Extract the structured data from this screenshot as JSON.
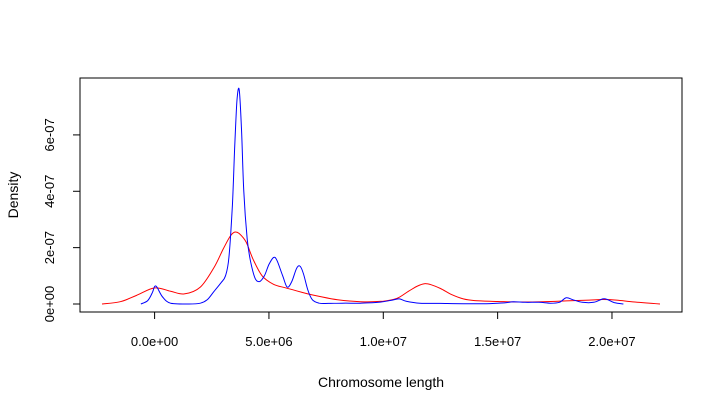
{
  "chart_data": {
    "type": "line",
    "title": "",
    "xlabel": "Chromosome length",
    "ylabel": "Density",
    "xlim": [
      -2300000,
      22100000
    ],
    "ylim": [
      0,
      7.7e-07
    ],
    "x_ticks": [
      {
        "value": 0,
        "label": "0.0e+00"
      },
      {
        "value": 5000000,
        "label": "5.0e+06"
      },
      {
        "value": 10000000,
        "label": "1.0e+07"
      },
      {
        "value": 15000000,
        "label": "1.5e+07"
      },
      {
        "value": 20000000,
        "label": "2.0e+07"
      }
    ],
    "y_ticks": [
      {
        "value": 0,
        "label": "0e+00"
      },
      {
        "value": 2e-07,
        "label": "2e-07"
      },
      {
        "value": 4e-07,
        "label": "4e-07"
      },
      {
        "value": 6e-07,
        "label": "6e-07"
      }
    ],
    "grid": false,
    "series": [
      {
        "color": "#ff0000",
        "x": [
          -2300000,
          -1500000,
          -800000,
          0,
          700000,
          1300000,
          2000000,
          2600000,
          3000000,
          3300000,
          3500000,
          3700000,
          4000000,
          4300000,
          4700000,
          5200000,
          5700000,
          6200000,
          6700000,
          7200000,
          8000000,
          9000000,
          10000000,
          10600000,
          11100000,
          11500000,
          11800000,
          12100000,
          12500000,
          13000000,
          13500000,
          14000000,
          15000000,
          16000000,
          17000000,
          18000000,
          19000000,
          19600000,
          20200000,
          21000000,
          22100000
        ],
        "y": [
          0,
          8e-09,
          3e-08,
          5.7e-08,
          4.5e-08,
          3.6e-08,
          6e-08,
          1.3e-07,
          1.95e-07,
          2.4e-07,
          2.55e-07,
          2.5e-07,
          2.2e-07,
          1.6e-07,
          1e-07,
          7e-08,
          5.8e-08,
          4.7e-08,
          3.6e-08,
          2.7e-08,
          1.5e-08,
          8e-09,
          1e-08,
          2e-08,
          4.5e-08,
          6.4e-08,
          7.2e-08,
          6.8e-08,
          5.5e-08,
          3.3e-08,
          1.8e-08,
          1.2e-08,
          9e-09,
          7e-09,
          8e-09,
          1.1e-08,
          1.4e-08,
          1.6e-08,
          1.4e-08,
          7e-09,
          0
        ]
      },
      {
        "color": "#0000ff",
        "x": [
          -600000,
          -300000,
          -100000,
          0,
          100000,
          350000,
          700000,
          1500000,
          2000000,
          2300000,
          2600000,
          2900000,
          3100000,
          3250000,
          3400000,
          3500000,
          3600000,
          3700000,
          3800000,
          3900000,
          4050000,
          4200000,
          4400000,
          4600000,
          4800000,
          5000000,
          5200000,
          5350000,
          5600000,
          5800000,
          6000000,
          6200000,
          6350000,
          6500000,
          6700000,
          6900000,
          7200000,
          7600000,
          8200000,
          9000000,
          9800000,
          10400000,
          10700000,
          11000000,
          11600000,
          12500000,
          13500000,
          14500000,
          15300000,
          15700000,
          16200000,
          16800000,
          17300000,
          17700000,
          18000000,
          18300000,
          18700000,
          19200000,
          19600000,
          19800000,
          20100000,
          20500000
        ],
        "y": [
          0,
          1.2e-08,
          4e-08,
          6.2e-08,
          6e-08,
          2.5e-08,
          3e-09,
          0,
          3e-09,
          1.5e-08,
          4.5e-08,
          7.5e-08,
          1e-07,
          1.65e-07,
          3.5e-07,
          5.5e-07,
          7.2e-07,
          7.6e-07,
          6.2e-07,
          4e-07,
          2.3e-07,
          1.5e-07,
          9e-08,
          8e-08,
          1e-07,
          1.4e-07,
          1.65e-07,
          1.55e-07,
          1e-07,
          6e-08,
          8e-08,
          1.25e-07,
          1.35e-07,
          1.1e-07,
          5e-08,
          1.5e-08,
          3e-09,
          2e-09,
          3e-09,
          3e-09,
          6e-09,
          1.4e-08,
          1.8e-08,
          1e-08,
          3e-09,
          2e-09,
          1e-09,
          1e-09,
          4e-09,
          8e-09,
          6e-09,
          6e-09,
          3e-09,
          6e-09,
          2.2e-08,
          1.5e-08,
          6e-09,
          6e-09,
          1.8e-08,
          1.6e-08,
          5e-09,
          0
        ]
      }
    ]
  }
}
